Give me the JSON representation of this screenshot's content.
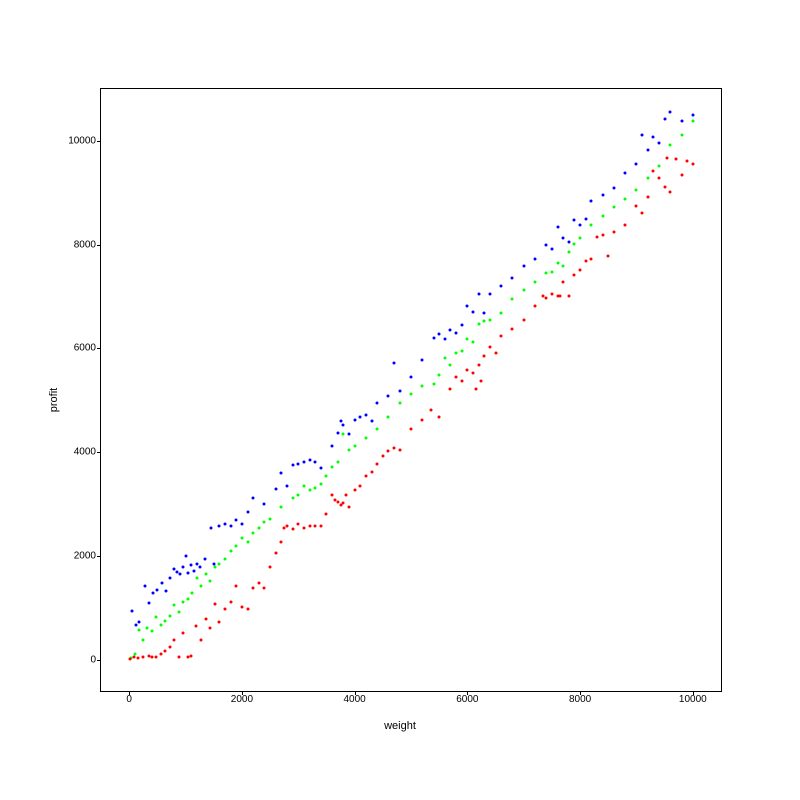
{
  "chart": {
    "type": "scatter",
    "xlabel": "weight",
    "ylabel": "profit",
    "label_fontsize": 11,
    "tick_fontsize": 10,
    "background_color": "#ffffff",
    "border_color": "#000000",
    "xlim": [
      -500,
      10500
    ],
    "ylim": [
      -600,
      11000
    ],
    "xtick_step": 2000,
    "ytick_step": 2000,
    "xticks": [
      0,
      2000,
      4000,
      6000,
      8000,
      10000
    ],
    "yticks": [
      0,
      2000,
      4000,
      6000,
      8000,
      10000
    ],
    "marker_size": 3,
    "series": [
      {
        "name": "blue",
        "color": "#0000ff",
        "points": [
          [
            50,
            950
          ],
          [
            120,
            680
          ],
          [
            180,
            720
          ],
          [
            280,
            1420
          ],
          [
            350,
            1100
          ],
          [
            420,
            1280
          ],
          [
            500,
            1350
          ],
          [
            580,
            1480
          ],
          [
            650,
            1320
          ],
          [
            720,
            1580
          ],
          [
            800,
            1750
          ],
          [
            850,
            1700
          ],
          [
            900,
            1650
          ],
          [
            950,
            1780
          ],
          [
            1000,
            2000
          ],
          [
            1050,
            1680
          ],
          [
            1100,
            1820
          ],
          [
            1150,
            1720
          ],
          [
            1200,
            1850
          ],
          [
            1250,
            1780
          ],
          [
            1350,
            1950
          ],
          [
            1450,
            2550
          ],
          [
            1500,
            1850
          ],
          [
            1600,
            2580
          ],
          [
            1700,
            2620
          ],
          [
            1800,
            2580
          ],
          [
            1900,
            2700
          ],
          [
            2000,
            2620
          ],
          [
            2100,
            2850
          ],
          [
            2200,
            3120
          ],
          [
            2400,
            3000
          ],
          [
            2600,
            3300
          ],
          [
            2700,
            3600
          ],
          [
            2800,
            3350
          ],
          [
            2900,
            3750
          ],
          [
            3000,
            3780
          ],
          [
            3100,
            3820
          ],
          [
            3200,
            3850
          ],
          [
            3300,
            3820
          ],
          [
            3400,
            3700
          ],
          [
            3600,
            4120
          ],
          [
            3700,
            4380
          ],
          [
            3750,
            4600
          ],
          [
            3800,
            4520
          ],
          [
            3900,
            4350
          ],
          [
            4000,
            4620
          ],
          [
            4100,
            4680
          ],
          [
            4200,
            4720
          ],
          [
            4300,
            4600
          ],
          [
            4400,
            4950
          ],
          [
            4600,
            5080
          ],
          [
            4700,
            5720
          ],
          [
            4800,
            5180
          ],
          [
            5000,
            5450
          ],
          [
            5200,
            5780
          ],
          [
            5400,
            6200
          ],
          [
            5500,
            6280
          ],
          [
            5600,
            6180
          ],
          [
            5700,
            6350
          ],
          [
            5800,
            6300
          ],
          [
            5900,
            6450
          ],
          [
            6000,
            6820
          ],
          [
            6100,
            6700
          ],
          [
            6200,
            7050
          ],
          [
            6300,
            6680
          ],
          [
            6400,
            7050
          ],
          [
            6600,
            7200
          ],
          [
            6800,
            7350
          ],
          [
            7000,
            7580
          ],
          [
            7200,
            7720
          ],
          [
            7400,
            8000
          ],
          [
            7500,
            7920
          ],
          [
            7600,
            8350
          ],
          [
            7700,
            8120
          ],
          [
            7800,
            8050
          ],
          [
            7900,
            8480
          ],
          [
            8000,
            8380
          ],
          [
            8100,
            8500
          ],
          [
            8200,
            8850
          ],
          [
            8400,
            8950
          ],
          [
            8600,
            9100
          ],
          [
            8800,
            9380
          ],
          [
            9000,
            9550
          ],
          [
            9100,
            10120
          ],
          [
            9200,
            9820
          ],
          [
            9300,
            10080
          ],
          [
            9400,
            9950
          ],
          [
            9500,
            10420
          ],
          [
            9600,
            10550
          ],
          [
            9800,
            10380
          ],
          [
            10000,
            10500
          ]
        ]
      },
      {
        "name": "green",
        "color": "#00ff00",
        "points": [
          [
            30,
            30
          ],
          [
            100,
            120
          ],
          [
            180,
            580
          ],
          [
            250,
            380
          ],
          [
            320,
            620
          ],
          [
            400,
            550
          ],
          [
            480,
            820
          ],
          [
            560,
            680
          ],
          [
            640,
            750
          ],
          [
            720,
            850
          ],
          [
            800,
            1050
          ],
          [
            880,
            920
          ],
          [
            960,
            1120
          ],
          [
            1040,
            1180
          ],
          [
            1120,
            1280
          ],
          [
            1200,
            1580
          ],
          [
            1280,
            1420
          ],
          [
            1360,
            1650
          ],
          [
            1440,
            1520
          ],
          [
            1520,
            1780
          ],
          [
            1600,
            1850
          ],
          [
            1700,
            1950
          ],
          [
            1800,
            2100
          ],
          [
            1900,
            2200
          ],
          [
            2000,
            2350
          ],
          [
            2100,
            2280
          ],
          [
            2200,
            2450
          ],
          [
            2300,
            2550
          ],
          [
            2400,
            2650
          ],
          [
            2500,
            2720
          ],
          [
            2700,
            2950
          ],
          [
            2900,
            3120
          ],
          [
            3000,
            3180
          ],
          [
            3100,
            3350
          ],
          [
            3200,
            3280
          ],
          [
            3300,
            3320
          ],
          [
            3400,
            3380
          ],
          [
            3500,
            3550
          ],
          [
            3600,
            3720
          ],
          [
            3700,
            3820
          ],
          [
            3800,
            4350
          ],
          [
            3900,
            4050
          ],
          [
            4000,
            4120
          ],
          [
            4200,
            4280
          ],
          [
            4400,
            4450
          ],
          [
            4600,
            4680
          ],
          [
            4800,
            4950
          ],
          [
            5000,
            5120
          ],
          [
            5200,
            5280
          ],
          [
            5400,
            5320
          ],
          [
            5500,
            5480
          ],
          [
            5600,
            5820
          ],
          [
            5700,
            5680
          ],
          [
            5800,
            5920
          ],
          [
            5900,
            5950
          ],
          [
            6000,
            6180
          ],
          [
            6100,
            6120
          ],
          [
            6200,
            6480
          ],
          [
            6300,
            6520
          ],
          [
            6400,
            6550
          ],
          [
            6600,
            6680
          ],
          [
            6800,
            6950
          ],
          [
            7000,
            7120
          ],
          [
            7200,
            7280
          ],
          [
            7400,
            7450
          ],
          [
            7500,
            7480
          ],
          [
            7600,
            7650
          ],
          [
            7700,
            7580
          ],
          [
            7800,
            7850
          ],
          [
            7900,
            8020
          ],
          [
            8000,
            8120
          ],
          [
            8200,
            8380
          ],
          [
            8400,
            8550
          ],
          [
            8600,
            8720
          ],
          [
            8800,
            8880
          ],
          [
            9000,
            9050
          ],
          [
            9200,
            9280
          ],
          [
            9400,
            9520
          ],
          [
            9600,
            9920
          ],
          [
            9800,
            10120
          ],
          [
            10000,
            10380
          ]
        ]
      },
      {
        "name": "red",
        "color": "#ff0000",
        "points": [
          [
            20,
            20
          ],
          [
            80,
            50
          ],
          [
            150,
            30
          ],
          [
            250,
            50
          ],
          [
            350,
            80
          ],
          [
            400,
            60
          ],
          [
            480,
            50
          ],
          [
            560,
            120
          ],
          [
            640,
            180
          ],
          [
            720,
            250
          ],
          [
            800,
            380
          ],
          [
            880,
            50
          ],
          [
            960,
            520
          ],
          [
            1040,
            50
          ],
          [
            1100,
            80
          ],
          [
            1180,
            650
          ],
          [
            1280,
            380
          ],
          [
            1360,
            780
          ],
          [
            1440,
            620
          ],
          [
            1520,
            1080
          ],
          [
            1600,
            720
          ],
          [
            1700,
            980
          ],
          [
            1800,
            1120
          ],
          [
            1900,
            1420
          ],
          [
            2000,
            1020
          ],
          [
            2100,
            980
          ],
          [
            2200,
            1380
          ],
          [
            2300,
            1480
          ],
          [
            2400,
            1380
          ],
          [
            2500,
            1780
          ],
          [
            2600,
            2050
          ],
          [
            2700,
            2280
          ],
          [
            2750,
            2550
          ],
          [
            2800,
            2580
          ],
          [
            2900,
            2520
          ],
          [
            3000,
            2620
          ],
          [
            3100,
            2550
          ],
          [
            3200,
            2580
          ],
          [
            3300,
            2580
          ],
          [
            3400,
            2580
          ],
          [
            3500,
            2820
          ],
          [
            3600,
            3180
          ],
          [
            3650,
            3080
          ],
          [
            3700,
            3050
          ],
          [
            3750,
            2980
          ],
          [
            3800,
            3020
          ],
          [
            3850,
            3180
          ],
          [
            3900,
            2950
          ],
          [
            4000,
            3280
          ],
          [
            4100,
            3350
          ],
          [
            4200,
            3550
          ],
          [
            4300,
            3620
          ],
          [
            4400,
            3780
          ],
          [
            4500,
            3920
          ],
          [
            4600,
            4020
          ],
          [
            4700,
            4080
          ],
          [
            4800,
            4050
          ],
          [
            5000,
            4450
          ],
          [
            5200,
            4620
          ],
          [
            5350,
            4820
          ],
          [
            5500,
            4680
          ],
          [
            5700,
            5220
          ],
          [
            5800,
            5450
          ],
          [
            5900,
            5380
          ],
          [
            6000,
            5580
          ],
          [
            6100,
            5520
          ],
          [
            6150,
            5220
          ],
          [
            6200,
            5680
          ],
          [
            6250,
            5380
          ],
          [
            6300,
            5850
          ],
          [
            6400,
            6020
          ],
          [
            6500,
            5920
          ],
          [
            6600,
            6250
          ],
          [
            6800,
            6380
          ],
          [
            7000,
            6550
          ],
          [
            7200,
            6820
          ],
          [
            7350,
            7020
          ],
          [
            7400,
            6980
          ],
          [
            7500,
            7050
          ],
          [
            7600,
            7020
          ],
          [
            7650,
            7020
          ],
          [
            7700,
            7280
          ],
          [
            7800,
            7020
          ],
          [
            7900,
            7420
          ],
          [
            8000,
            7520
          ],
          [
            8100,
            7680
          ],
          [
            8200,
            7720
          ],
          [
            8300,
            8150
          ],
          [
            8400,
            8180
          ],
          [
            8500,
            7780
          ],
          [
            8600,
            8250
          ],
          [
            8800,
            8380
          ],
          [
            9000,
            8750
          ],
          [
            9100,
            8620
          ],
          [
            9200,
            8920
          ],
          [
            9300,
            9420
          ],
          [
            9400,
            9280
          ],
          [
            9500,
            9120
          ],
          [
            9550,
            9680
          ],
          [
            9600,
            9020
          ],
          [
            9700,
            9650
          ],
          [
            9800,
            9350
          ],
          [
            9900,
            9620
          ],
          [
            10000,
            9550
          ]
        ]
      }
    ]
  }
}
